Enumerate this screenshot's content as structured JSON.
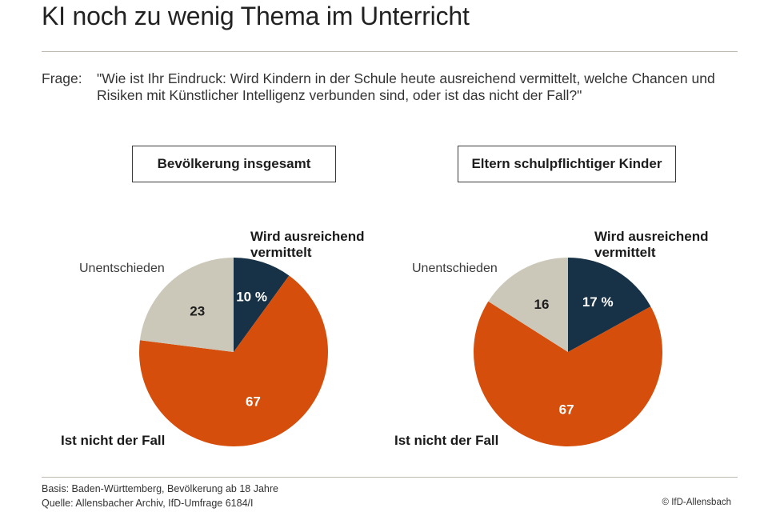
{
  "title": "KI noch zu wenig Thema im Unterricht",
  "question": {
    "label": "Frage:",
    "text": "\"Wie ist Ihr Eindruck: Wird Kindern in der Schule heute ausreichend vermittelt, welche Chancen und Risiken mit Künstlicher Intelligenz verbunden sind, oder ist das nicht der Fall?\""
  },
  "footer": {
    "basis": "Basis: Baden-Württemberg, Bevölkerung ab 18 Jahre",
    "source": "Quelle: Allensbacher Archiv, IfD-Umfrage 6184/I",
    "copyright": "© IfD-Allensbach"
  },
  "colors": {
    "ausreichend": "#173246",
    "nicht": "#d64e0c",
    "unentschieden": "#ccc8b9"
  },
  "chart_data": [
    {
      "type": "pie",
      "title": "Bevölkerung insgesamt",
      "slices": [
        {
          "label_line1": "Wird ausreichend",
          "label_line2": "vermittelt",
          "value": 10,
          "value_label": "10 %",
          "color": "#173246"
        },
        {
          "label": "Ist nicht der Fall",
          "value": 67,
          "value_label": "67",
          "color": "#d64e0c"
        },
        {
          "label": "Unentschieden",
          "value": 23,
          "value_label": "23",
          "color": "#ccc8b9"
        }
      ]
    },
    {
      "type": "pie",
      "title": "Eltern schulpflichtiger Kinder",
      "slices": [
        {
          "label_line1": "Wird ausreichend",
          "label_line2": "vermittelt",
          "value": 17,
          "value_label": "17 %",
          "color": "#173246"
        },
        {
          "label": "Ist nicht der Fall",
          "value": 67,
          "value_label": "67",
          "color": "#d64e0c"
        },
        {
          "label": "Unentschieden",
          "value": 16,
          "value_label": "16",
          "color": "#ccc8b9"
        }
      ]
    }
  ]
}
